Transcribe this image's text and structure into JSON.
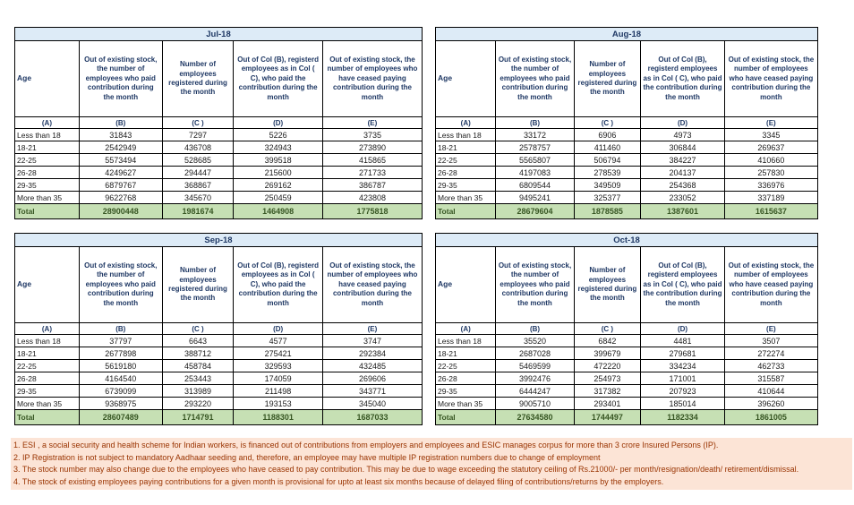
{
  "colors": {
    "month_header_bg": "#DDEBF7",
    "header_text": "#1F3864",
    "total_bg": "#C6E0B4",
    "total_text": "#375623",
    "footnote_bg": "#FCE4D6",
    "footnote_text": "#993300",
    "border": "#000000"
  },
  "column_headers": {
    "age": "Age",
    "b": "Out of existing stock, the number of employees who paid contribution during the month",
    "c": "Number of employees registered during the month",
    "d": "Out of Col (B), registerd employees as in Col ( C), who paid the contribution during the month",
    "e": "Out of existing stock, the number of  employees who have ceased paying contribution during the month"
  },
  "letter_row": [
    "(A)",
    "(B)",
    "(C )",
    "(D)",
    "(E)"
  ],
  "total_label": "Total",
  "tables": [
    {
      "month": "Jul-18",
      "rows": [
        {
          "age": "Less than 18",
          "values": [
            "31843",
            "7297",
            "5226",
            "3735"
          ]
        },
        {
          "age": "18-21",
          "values": [
            "2542949",
            "436708",
            "324943",
            "273890"
          ]
        },
        {
          "age": "22-25",
          "values": [
            "5573494",
            "528685",
            "399518",
            "415865"
          ]
        },
        {
          "age": "26-28",
          "values": [
            "4249627",
            "294447",
            "215600",
            "271733"
          ]
        },
        {
          "age": "29-35",
          "values": [
            "6879767",
            "368867",
            "269162",
            "386787"
          ]
        },
        {
          "age": "More than 35",
          "values": [
            "9622768",
            "345670",
            "250459",
            "423808"
          ]
        }
      ],
      "total": [
        "28900448",
        "1981674",
        "1464908",
        "1775818"
      ]
    },
    {
      "month": "Aug-18",
      "rows": [
        {
          "age": "Less than 18",
          "values": [
            "33172",
            "6906",
            "4973",
            "3345"
          ]
        },
        {
          "age": "18-21",
          "values": [
            "2578757",
            "411460",
            "306844",
            "269637"
          ]
        },
        {
          "age": "22-25",
          "values": [
            "5565807",
            "506794",
            "384227",
            "410660"
          ]
        },
        {
          "age": "26-28",
          "values": [
            "4197083",
            "278539",
            "204137",
            "257830"
          ]
        },
        {
          "age": "29-35",
          "values": [
            "6809544",
            "349509",
            "254368",
            "336976"
          ]
        },
        {
          "age": "More than 35",
          "values": [
            "9495241",
            "325377",
            "233052",
            "337189"
          ]
        }
      ],
      "total": [
        "28679604",
        "1878585",
        "1387601",
        "1615637"
      ]
    },
    {
      "month": "Sep-18",
      "rows": [
        {
          "age": "Less than 18",
          "values": [
            "37797",
            "6643",
            "4577",
            "3747"
          ]
        },
        {
          "age": "18-21",
          "values": [
            "2677898",
            "388712",
            "275421",
            "292384"
          ]
        },
        {
          "age": "22-25",
          "values": [
            "5619180",
            "458784",
            "329593",
            "432485"
          ]
        },
        {
          "age": "26-28",
          "values": [
            "4164540",
            "253443",
            "174059",
            "269606"
          ]
        },
        {
          "age": "29-35",
          "values": [
            "6739099",
            "313989",
            "211498",
            "343771"
          ]
        },
        {
          "age": "More than 35",
          "values": [
            "9368975",
            "293220",
            "193153",
            "345040"
          ]
        }
      ],
      "total": [
        "28607489",
        "1714791",
        "1188301",
        "1687033"
      ]
    },
    {
      "month": "Oct-18",
      "rows": [
        {
          "age": "Less than 18",
          "values": [
            "35520",
            "6842",
            "4481",
            "3507"
          ]
        },
        {
          "age": "18-21",
          "values": [
            "2687028",
            "399679",
            "279681",
            "272274"
          ]
        },
        {
          "age": "22-25",
          "values": [
            "5469599",
            "472220",
            "334234",
            "462733"
          ]
        },
        {
          "age": "26-28",
          "values": [
            "3992476",
            "254973",
            "171001",
            "315587"
          ]
        },
        {
          "age": "29-35",
          "values": [
            "6444247",
            "317382",
            "207923",
            "410644"
          ]
        },
        {
          "age": "More than 35",
          "values": [
            "9005710",
            "293401",
            "185014",
            "396260"
          ]
        }
      ],
      "total": [
        "27634580",
        "1744497",
        "1182334",
        "1861005"
      ]
    }
  ],
  "footnotes": [
    "1. ESI , a social security and health scheme for Indian workers, is financed out of contributions from employers and employees and ESIC manages corpus for more than 3 crore Insured Persons (IP).",
    "2. IP Registration is not subject to mandatory Aadhaar seeding and, therefore, an employee may have multiple IP registration numbers due to change of employment",
    "3. The stock number may also change due to the employees who have ceased to pay contribution. This may  be due to wage exceeding the statutory ceiling of  Rs.21000/- per month/resignation/death/ retirement/dismissal.",
    "4. The stock of existing employees paying contributions for a given month is provisional for upto at least six months because of delayed filing of contributions/returns by the employers."
  ]
}
